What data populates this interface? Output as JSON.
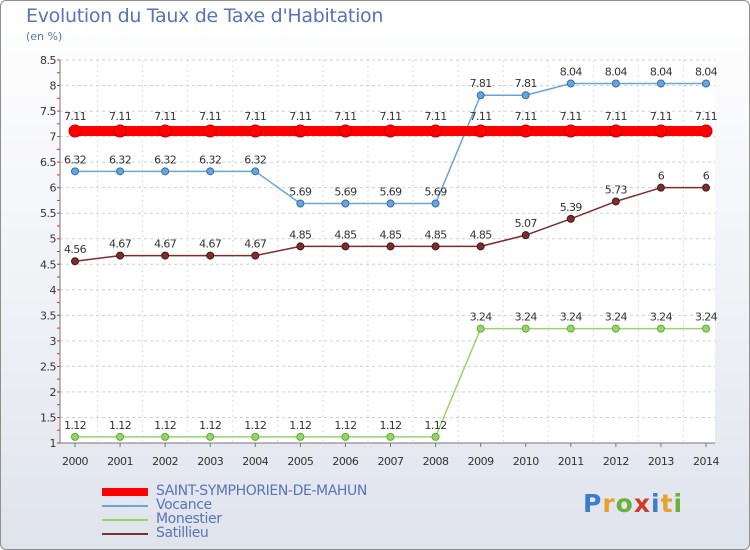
{
  "header": {
    "title": "Evolution du Taux de Taxe d'Habitation",
    "subtitle": "(en %)"
  },
  "logo": {
    "letters": [
      "P",
      "r",
      "o",
      "x",
      "i",
      "t",
      "i"
    ],
    "colors": [
      "#3d7ec8",
      "#e8a22c",
      "#6ab03a",
      "#d23a2a",
      "#3d7ec8",
      "#e8a22c",
      "#6ab03a"
    ]
  },
  "chart_data": {
    "type": "line",
    "title": "Evolution du Taux de Taxe d'Habitation",
    "ylabel": "(en %)",
    "xlabel": "",
    "x": [
      "2000",
      "2001",
      "2002",
      "2003",
      "2004",
      "2005",
      "2006",
      "2007",
      "2008",
      "2009",
      "2010",
      "2011",
      "2012",
      "2013",
      "2014"
    ],
    "ylim": [
      1,
      8.5
    ],
    "yticks": [
      "1",
      "1.5",
      "2",
      "2.5",
      "3",
      "3.5",
      "4",
      "4.5",
      "5",
      "5.5",
      "6",
      "6.5",
      "7",
      "7.5",
      "8",
      "8.5"
    ],
    "grid": "horizontal dashed",
    "legend_position": "bottom-left",
    "series": [
      {
        "name": "SAINT-SYMPHORIEN-DE-MAHUN",
        "color": "#ff0000",
        "values": [
          7.11,
          7.11,
          7.11,
          7.11,
          7.11,
          7.11,
          7.11,
          7.11,
          7.11,
          7.11,
          7.11,
          7.11,
          7.11,
          7.11,
          7.11
        ],
        "labels": [
          "7.11",
          "7.11",
          "7.11",
          "7.11",
          "7.11",
          "7.11",
          "7.11",
          "7.11",
          "7.11",
          "7.11",
          "7.11",
          "7.11",
          "7.11",
          "7.11",
          "7.11"
        ]
      },
      {
        "name": "Vocance",
        "color": "#6aa4d8",
        "values": [
          6.32,
          6.32,
          6.32,
          6.32,
          6.32,
          5.69,
          5.69,
          5.69,
          5.69,
          7.81,
          7.81,
          8.04,
          8.04,
          8.04,
          8.04
        ],
        "labels": [
          "6.32",
          "6.32",
          "6.32",
          "6.32",
          "6.32",
          "5.69",
          "5.69",
          "5.69",
          "5.69",
          "7.81",
          "7.81",
          "8.04",
          "8.04",
          "8.04",
          "8.04"
        ]
      },
      {
        "name": "Monestier",
        "color": "#99d36b",
        "values": [
          1.12,
          1.12,
          1.12,
          1.12,
          1.12,
          1.12,
          1.12,
          1.12,
          1.12,
          3.24,
          3.24,
          3.24,
          3.24,
          3.24,
          3.24
        ],
        "labels": [
          "1.12",
          "1.12",
          "1.12",
          "1.12",
          "1.12",
          "1.12",
          "1.12",
          "1.12",
          "1.12",
          "3.24",
          "3.24",
          "3.24",
          "3.24",
          "3.24",
          "3.24"
        ]
      },
      {
        "name": "Satillieu",
        "color": "#7a2e2e",
        "values": [
          4.56,
          4.67,
          4.67,
          4.67,
          4.67,
          4.85,
          4.85,
          4.85,
          4.85,
          4.85,
          5.07,
          5.39,
          5.73,
          6,
          6
        ],
        "labels": [
          "4.56",
          "4.67",
          "4.67",
          "4.67",
          "4.67",
          "4.85",
          "4.85",
          "4.85",
          "4.85",
          "4.85",
          "5.07",
          "5.39",
          "5.73",
          "6",
          "6"
        ]
      }
    ]
  }
}
